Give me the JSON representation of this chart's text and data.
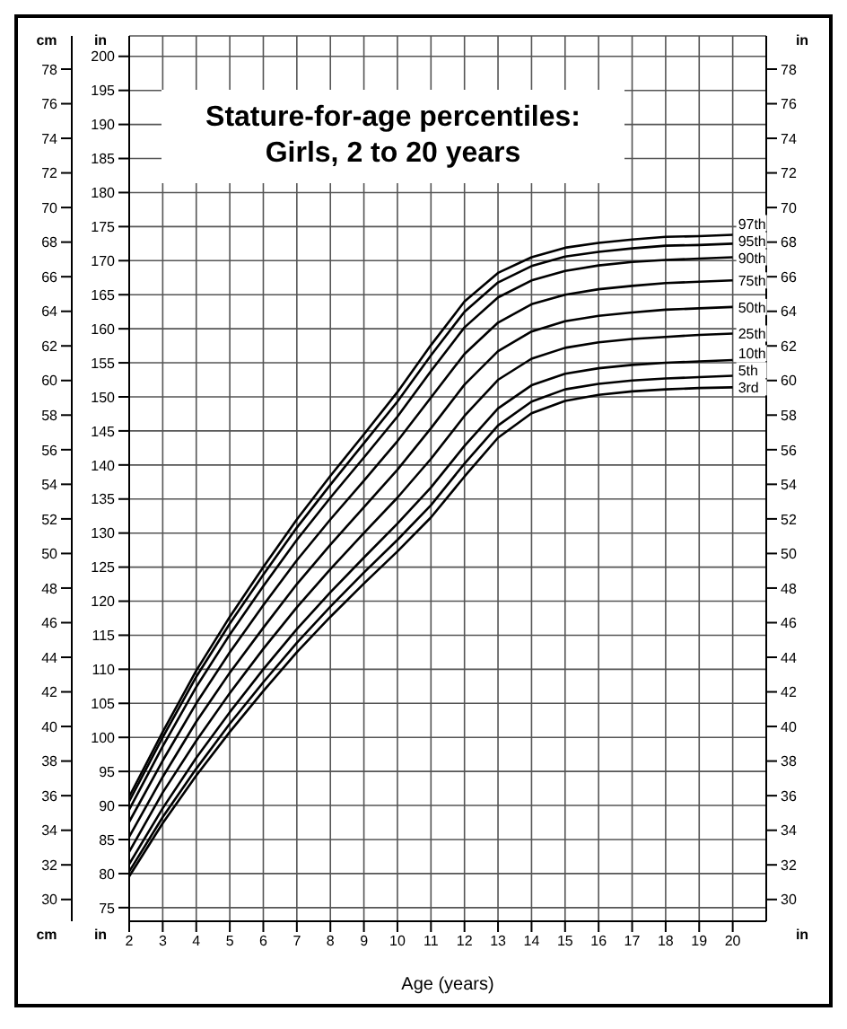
{
  "chart_data": {
    "type": "line",
    "title": "Stature-for-age percentiles:\nGirls, 2 to 20 years",
    "xlabel": "Age (years)",
    "ylabel": "cm",
    "y2label": "in",
    "y3label": "in",
    "x": [
      2,
      3,
      4,
      5,
      6,
      7,
      8,
      9,
      10,
      11,
      12,
      13,
      14,
      15,
      16,
      17,
      18,
      19,
      20
    ],
    "series": [
      {
        "name": "3rd",
        "color": "#000000",
        "values": [
          79.6,
          87.4,
          94.4,
          100.8,
          106.8,
          112.5,
          117.7,
          122.6,
          127.3,
          132.3,
          138.3,
          144.0,
          147.6,
          149.4,
          150.3,
          150.8,
          151.1,
          151.3,
          151.4
        ]
      },
      {
        "name": "5th",
        "color": "#000000",
        "values": [
          80.3,
          88.3,
          95.4,
          102.0,
          108.1,
          113.9,
          119.2,
          124.2,
          129.0,
          134.1,
          140.2,
          145.8,
          149.3,
          151.1,
          151.9,
          152.4,
          152.7,
          152.9,
          153.1
        ]
      },
      {
        "name": "10th",
        "color": "#000000",
        "values": [
          81.4,
          89.6,
          97.0,
          103.7,
          110.0,
          115.9,
          121.3,
          126.4,
          131.4,
          136.7,
          142.8,
          148.3,
          151.7,
          153.4,
          154.2,
          154.7,
          155.0,
          155.2,
          155.4
        ]
      },
      {
        "name": "25th",
        "color": "#000000",
        "values": [
          83.2,
          91.9,
          99.5,
          106.5,
          113.0,
          119.1,
          124.7,
          130.0,
          135.2,
          140.9,
          147.2,
          152.5,
          155.6,
          157.2,
          158.0,
          158.5,
          158.8,
          159.1,
          159.3
        ]
      },
      {
        "name": "50th",
        "color": "#000000",
        "values": [
          85.4,
          94.2,
          102.3,
          109.5,
          116.1,
          122.5,
          128.3,
          133.8,
          139.3,
          145.4,
          151.8,
          156.7,
          159.6,
          161.1,
          161.9,
          162.4,
          162.8,
          163.0,
          163.2
        ]
      },
      {
        "name": "75th",
        "color": "#000000",
        "values": [
          87.6,
          96.6,
          105.0,
          112.5,
          119.4,
          126.0,
          132.0,
          137.7,
          143.5,
          149.9,
          156.3,
          160.9,
          163.6,
          165.0,
          165.8,
          166.3,
          166.7,
          166.9,
          167.1
        ]
      },
      {
        "name": "90th",
        "color": "#000000",
        "values": [
          89.4,
          98.7,
          107.4,
          115.1,
          122.2,
          129.0,
          135.2,
          141.1,
          147.1,
          153.8,
          160.2,
          164.6,
          167.1,
          168.5,
          169.3,
          169.8,
          170.1,
          170.3,
          170.5
        ]
      },
      {
        "name": "95th",
        "color": "#000000",
        "values": [
          90.6,
          100.0,
          108.9,
          116.7,
          123.9,
          130.8,
          137.1,
          143.2,
          149.3,
          156.1,
          162.5,
          166.8,
          169.2,
          170.6,
          171.3,
          171.8,
          172.2,
          172.3,
          172.5
        ]
      },
      {
        "name": "97th",
        "color": "#000000",
        "values": [
          91.3,
          100.8,
          109.8,
          117.7,
          125.0,
          132.0,
          138.4,
          144.5,
          150.7,
          157.6,
          164.0,
          168.2,
          170.5,
          171.9,
          172.6,
          173.1,
          173.5,
          173.6,
          173.8
        ]
      }
    ],
    "xlim": [
      2,
      21
    ],
    "xticks": [
      2,
      3,
      4,
      5,
      6,
      7,
      8,
      9,
      10,
      11,
      12,
      13,
      14,
      15,
      16,
      17,
      18,
      19,
      20
    ],
    "ylim": [
      73,
      203
    ],
    "yticks": [
      75,
      80,
      85,
      90,
      95,
      100,
      105,
      110,
      115,
      120,
      125,
      130,
      135,
      140,
      145,
      150,
      155,
      160,
      165,
      170,
      175,
      180,
      185,
      190,
      195,
      200
    ],
    "y2lim": [
      28.74,
      79.92
    ],
    "y2ticks": [
      30,
      32,
      34,
      36,
      38,
      40,
      42,
      44,
      46,
      48,
      50,
      52,
      54,
      56,
      58,
      60,
      62,
      64,
      66,
      68,
      70,
      72,
      74,
      76,
      78
    ],
    "y3lim": [
      28.74,
      79.92
    ],
    "y3ticks": [
      30,
      32,
      34,
      36,
      38,
      40,
      42,
      44,
      46,
      48,
      50,
      52,
      54,
      56,
      58,
      60,
      62,
      64,
      66,
      68,
      70,
      72,
      74,
      76,
      78
    ],
    "grid": true,
    "line_style": "solid"
  }
}
